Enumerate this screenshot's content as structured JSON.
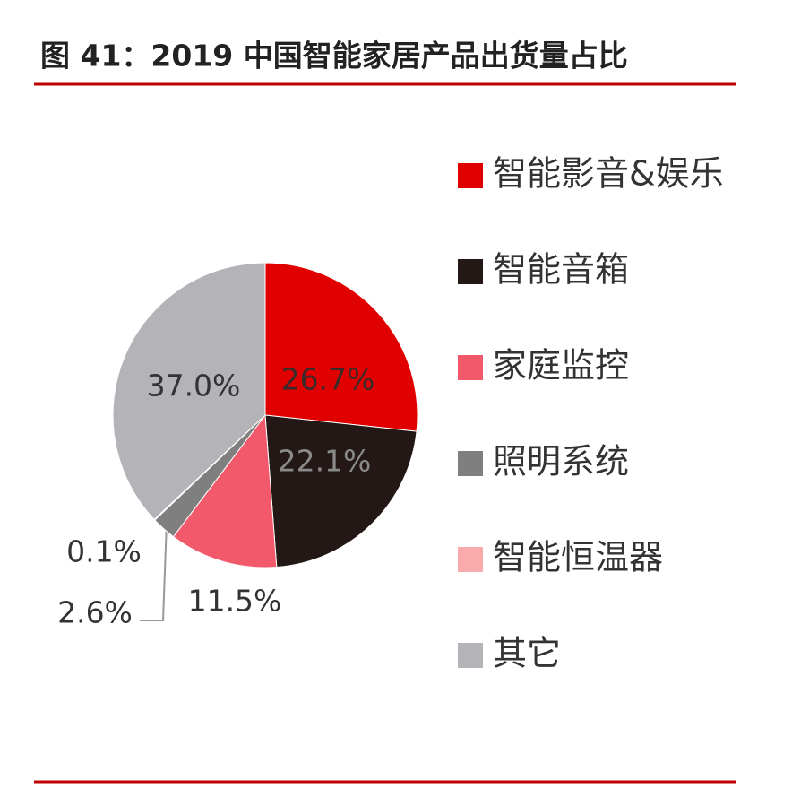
{
  "chart_data": {
    "type": "pie",
    "title": "图 41：2019 中国智能家居产品出货量占比",
    "categories": [
      "智能影音&娱乐",
      "智能音箱",
      "家庭监控",
      "照明系统",
      "智能恒温器",
      "其它"
    ],
    "values": [
      26.7,
      22.1,
      11.5,
      2.6,
      0.1,
      37.0
    ],
    "value_labels": [
      "26.7%",
      "22.1%",
      "11.5%",
      "2.6%",
      "0.1%",
      "37.0%"
    ],
    "colors": [
      "#e00000",
      "#231815",
      "#f25a6c",
      "#7f7f7f",
      "#f9abab",
      "#b4b4b8"
    ],
    "legend": "right"
  }
}
